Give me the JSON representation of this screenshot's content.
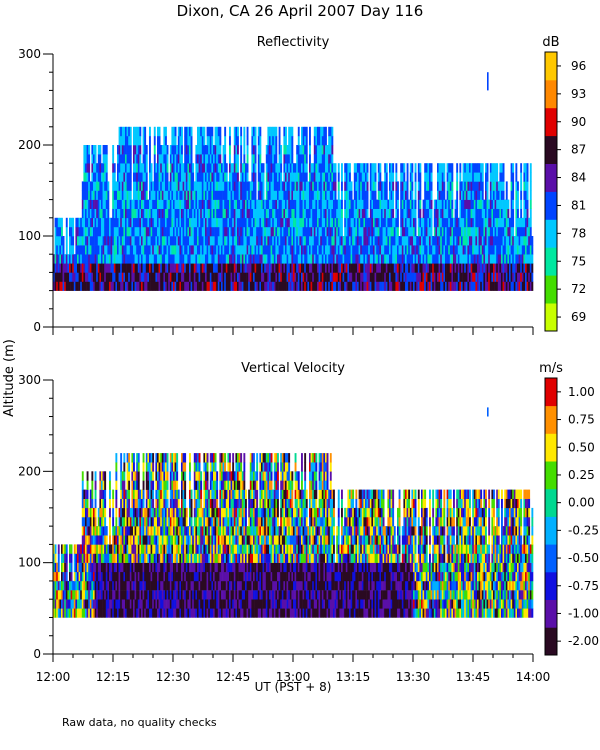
{
  "title": "Dixon, CA 26 April 2007  Day 116",
  "footnote": "Raw data, no quality checks",
  "y_axis_label": "Altitude (m)",
  "x_axis_label": "UT  (PST + 8)",
  "chart_data": [
    {
      "type": "heatmap",
      "title": "Reflectivity",
      "colorbar_unit": "dB",
      "colorbar_ticks": [
        "69",
        "72",
        "75",
        "78",
        "81",
        "84",
        "87",
        "90",
        "93",
        "96"
      ],
      "colorbar_colors": [
        "#c8ff00",
        "#44dd00",
        "#00e8a0",
        "#00c8ff",
        "#0044ff",
        "#5a0fa8",
        "#2a0a22",
        "#e00000",
        "#ff8800",
        "#ffc800"
      ],
      "xlabel": "UT  (PST + 8)",
      "ylabel": "Altitude (m)",
      "x_ticks": [
        "12:00",
        "12:15",
        "12:30",
        "12:45",
        "13:00",
        "13:15",
        "13:30",
        "13:45",
        "14:00"
      ],
      "y_ticks": [
        0,
        100,
        200,
        300
      ],
      "xlim_minutes": [
        0,
        120
      ],
      "ylim": [
        0,
        300
      ],
      "data_base_altitude": 40,
      "top_altitude_segments": [
        {
          "t0": 0,
          "t1": 7,
          "top": 120
        },
        {
          "t0": 7,
          "t1": 15,
          "top": 200
        },
        {
          "t0": 15,
          "t1": 70,
          "top": 220
        },
        {
          "t0": 70,
          "t1": 120,
          "top": 180
        }
      ],
      "isolated_echo": {
        "minute": 108.5,
        "alt0": 260,
        "alt1": 280
      }
    },
    {
      "type": "heatmap",
      "title": "Vertical Velocity",
      "colorbar_unit": "m/s",
      "colorbar_ticks": [
        "-2.00",
        "-1.00",
        "-0.75",
        "-0.50",
        "-0.25",
        "0.00",
        "0.25",
        "0.50",
        "0.75",
        "1.00"
      ],
      "colorbar_colors": [
        "#2a0a22",
        "#5a0fa8",
        "#1010e0",
        "#0060ff",
        "#00b0ff",
        "#00d890",
        "#44dd00",
        "#ffe800",
        "#ff9000",
        "#e00000"
      ],
      "xlabel": "UT  (PST + 8)",
      "ylabel": "Altitude (m)",
      "x_ticks": [
        "12:00",
        "12:15",
        "12:30",
        "12:45",
        "13:00",
        "13:15",
        "13:30",
        "13:45",
        "14:00"
      ],
      "y_ticks": [
        0,
        100,
        200,
        300
      ],
      "xlim_minutes": [
        0,
        120
      ],
      "ylim": [
        0,
        300
      ],
      "data_base_altitude": 40,
      "top_altitude_segments": [
        {
          "t0": 0,
          "t1": 7,
          "top": 120
        },
        {
          "t0": 7,
          "t1": 15,
          "top": 200
        },
        {
          "t0": 15,
          "t1": 70,
          "top": 220
        },
        {
          "t0": 70,
          "t1": 120,
          "top": 180
        }
      ],
      "isolated_echo": {
        "minute": 108.5,
        "alt0": 260,
        "alt1": 270
      }
    }
  ]
}
